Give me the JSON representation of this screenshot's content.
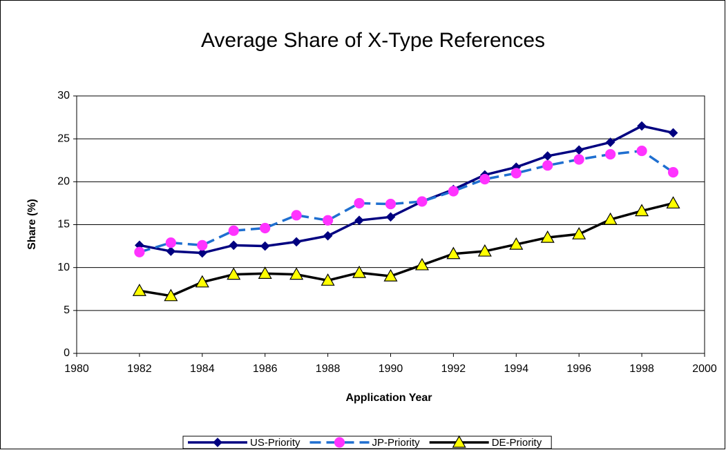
{
  "chart_data": {
    "type": "line",
    "title": "Average Share of X-Type References",
    "x_label": "Application Year",
    "y_label": "Share (%)",
    "x": [
      1982,
      1983,
      1984,
      1985,
      1986,
      1987,
      1988,
      1989,
      1990,
      1991,
      1992,
      1993,
      1994,
      1995,
      1996,
      1997,
      1998,
      1999
    ],
    "series": [
      {
        "name": "US-Priority",
        "color": "#000080",
        "marker": "diamond",
        "marker_color": "#000080",
        "dashed": false,
        "values": [
          12.6,
          11.9,
          11.7,
          12.6,
          12.5,
          13.0,
          13.7,
          15.5,
          15.9,
          17.7,
          19.1,
          20.8,
          21.7,
          23.0,
          23.7,
          24.6,
          26.5,
          25.7
        ]
      },
      {
        "name": "JP-Priority",
        "color": "#1f6fd0",
        "marker": "circle",
        "marker_color": "#ff33ff",
        "dashed": true,
        "values": [
          11.8,
          12.9,
          12.6,
          14.3,
          14.6,
          16.1,
          15.5,
          17.5,
          17.4,
          17.7,
          18.9,
          20.3,
          21.0,
          21.9,
          22.6,
          23.2,
          23.6,
          21.1
        ]
      },
      {
        "name": "DE-Priority",
        "color": "#000000",
        "marker": "triangle",
        "marker_color": "#ffff00",
        "dashed": false,
        "values": [
          7.3,
          6.7,
          8.3,
          9.2,
          9.3,
          9.2,
          8.5,
          9.4,
          9.0,
          10.3,
          11.6,
          11.9,
          12.7,
          13.5,
          13.9,
          15.6,
          16.6,
          17.5
        ]
      }
    ],
    "xlim": [
      1980,
      2000
    ],
    "xticks": [
      1980,
      1982,
      1984,
      1986,
      1988,
      1990,
      1992,
      1994,
      1996,
      1998,
      2000
    ],
    "ylim": [
      0,
      30
    ],
    "yticks": [
      0,
      5,
      10,
      15,
      20,
      25,
      30
    ],
    "grid": true,
    "legend": "bottom"
  }
}
